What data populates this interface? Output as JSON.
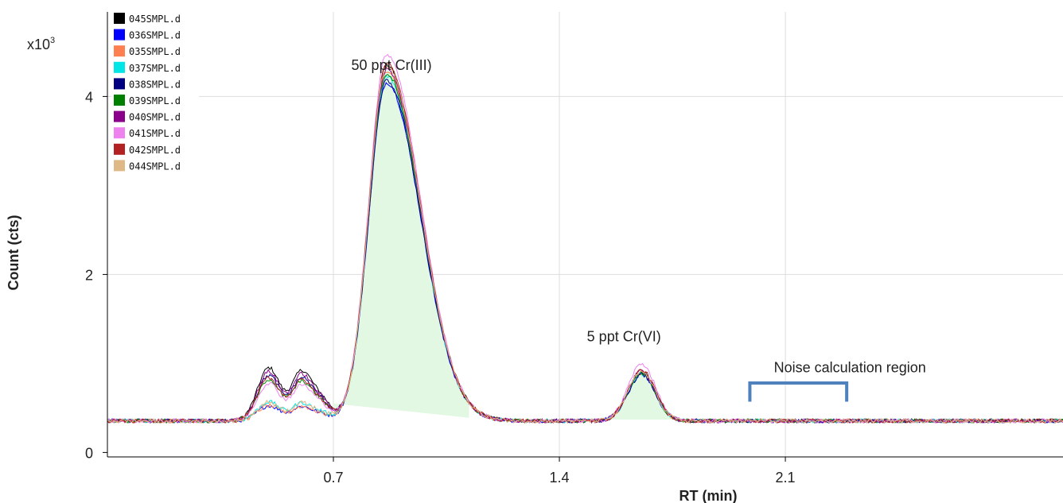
{
  "chart_data": {
    "type": "line",
    "xlabel": "RT (min)",
    "ylabel": "Count (cts)",
    "y_multiplier": "x10",
    "y_multiplier_exp": "3",
    "xlim": [
      0,
      2.96
    ],
    "ylim": [
      -0.05,
      4.95
    ],
    "x_ticks": [
      0.7,
      1.4,
      2.1
    ],
    "x_tick_labels": [
      "0.7",
      "1.4",
      "2.1"
    ],
    "y_ticks": [
      0,
      2,
      4
    ],
    "y_tick_labels": [
      "0",
      "2",
      "4"
    ],
    "grid": true,
    "legend_position": "top-left",
    "peak_fill_color": "#e2f8e2",
    "bracket_color": "#4f81bd",
    "annotations": [
      {
        "text": "50 ppt Cr(III)",
        "x": 0.88,
        "y": 4.3
      },
      {
        "text": "5 ppt Cr(VI)",
        "x": 1.6,
        "y": 1.25
      },
      {
        "text": "Noise calculation region",
        "x": 2.3,
        "y": 0.9
      }
    ],
    "noise_region": [
      1.99,
      2.29
    ],
    "series": [
      {
        "name": "045SMPL.d",
        "color": "#000000",
        "peak1": 4.38,
        "peak2": 0.93,
        "early": 1.05
      },
      {
        "name": "036SMPL.d",
        "color": "#0000ff",
        "peak1": 4.18,
        "peak2": 0.9,
        "early": 0.55
      },
      {
        "name": "035SMPL.d",
        "color": "#ff7f50",
        "peak1": 4.3,
        "peak2": 0.92,
        "early": 0.55
      },
      {
        "name": "037SMPL.d",
        "color": "#00e5e5",
        "peak1": 4.25,
        "peak2": 0.91,
        "early": 0.6
      },
      {
        "name": "038SMPL.d",
        "color": "#000080",
        "peak1": 4.2,
        "peak2": 0.9,
        "early": 0.95
      },
      {
        "name": "039SMPL.d",
        "color": "#008000",
        "peak1": 4.28,
        "peak2": 0.92,
        "early": 0.9
      },
      {
        "name": "040SMPL.d",
        "color": "#8b008b",
        "peak1": 4.33,
        "peak2": 0.94,
        "early": 1.0
      },
      {
        "name": "041SMPL.d",
        "color": "#ee82ee",
        "peak1": 4.5,
        "peak2": 1.02,
        "early": 0.85
      },
      {
        "name": "042SMPL.d",
        "color": "#b22222",
        "peak1": 4.4,
        "peak2": 0.95,
        "early": 0.92
      },
      {
        "name": "044SMPL.d",
        "color": "#deb887",
        "peak1": 4.36,
        "peak2": 0.93,
        "early": 0.6
      }
    ]
  }
}
